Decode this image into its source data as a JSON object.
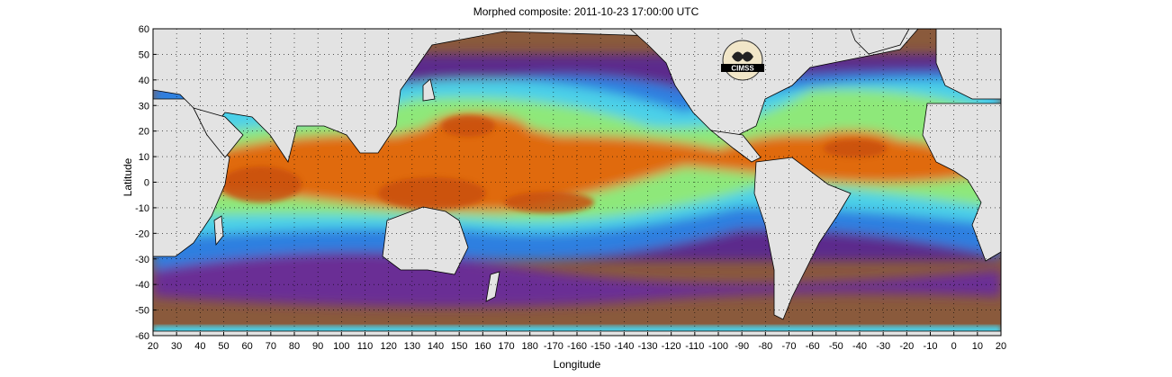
{
  "title": "Morphed composite: 2011-10-23 17:00:00 UTC",
  "axes": {
    "xlabel": "Longitude",
    "ylabel": "Latitude",
    "x_ticks": [
      "20",
      "30",
      "40",
      "50",
      "60",
      "70",
      "80",
      "90",
      "100",
      "110",
      "120",
      "130",
      "140",
      "150",
      "160",
      "170",
      "180",
      "-170",
      "-160",
      "-150",
      "-140",
      "-130",
      "-120",
      "-110",
      "-100",
      "-90",
      "-80",
      "-70",
      "-60",
      "-50",
      "-40",
      "-30",
      "-20",
      "-10",
      "0",
      "10",
      "20"
    ],
    "y_ticks": [
      "60",
      "50",
      "40",
      "30",
      "20",
      "10",
      "0",
      "-10",
      "-20",
      "-30",
      "-40",
      "-50",
      "-60"
    ]
  },
  "logo": {
    "text": "CIMSS"
  },
  "colors": {
    "land": "#e3e3e3",
    "dry": "#8a5a3c",
    "low": "#5b2a8c",
    "mid_low": "#2f7fe0",
    "mid": "#4cd0e8",
    "mid_high": "#8ee87a",
    "high": "#e06a10",
    "peak": "#c9500a"
  }
}
